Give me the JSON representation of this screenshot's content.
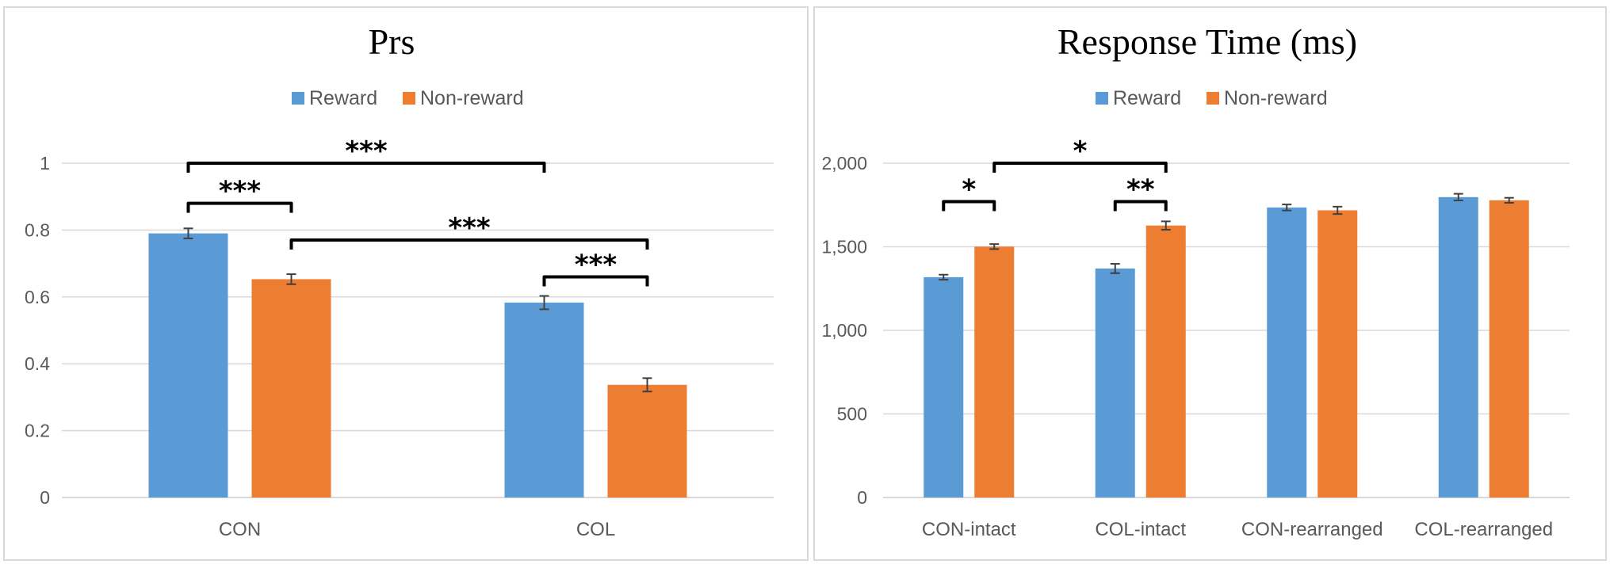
{
  "colors": {
    "reward": "#5b9bd5",
    "nonreward": "#ed7d31",
    "grid": "#d9d9d9",
    "errorbar": "#404040"
  },
  "chart_data": [
    {
      "type": "bar",
      "title": "Prs",
      "categories": [
        "CON",
        "COL"
      ],
      "series": [
        {
          "name": "Reward",
          "values": [
            0.79,
            0.583
          ],
          "errors": [
            0.015,
            0.02
          ]
        },
        {
          "name": "Non-reward",
          "values": [
            0.653,
            0.337
          ],
          "errors": [
            0.015,
            0.02
          ]
        }
      ],
      "ylim": [
        0,
        1
      ],
      "yticks": [
        0,
        0.2,
        0.4,
        0.6,
        0.8,
        1
      ],
      "ytick_labels": [
        "0",
        "0.2",
        "0.4",
        "0.6",
        "0.8",
        "1"
      ],
      "grid": true,
      "legend": "top",
      "significance": [
        {
          "from": [
            0,
            0
          ],
          "to": [
            1,
            0
          ],
          "level": 1.0,
          "label": "***"
        },
        {
          "from": [
            0,
            0
          ],
          "to": [
            0,
            1
          ],
          "level": 0.88,
          "label": "***"
        },
        {
          "from": [
            0,
            1
          ],
          "to": [
            1,
            1
          ],
          "level": 0.77,
          "label": "***"
        },
        {
          "from": [
            1,
            0
          ],
          "to": [
            1,
            1
          ],
          "level": 0.66,
          "label": "***"
        }
      ]
    },
    {
      "type": "bar",
      "title": "Response Time (ms)",
      "categories": [
        "CON-intact",
        "COL-intact",
        "CON-rearranged",
        "COL-rearranged"
      ],
      "series": [
        {
          "name": "Reward",
          "values": [
            1318,
            1370,
            1735,
            1797
          ],
          "errors": [
            15,
            28,
            18,
            20
          ]
        },
        {
          "name": "Non-reward",
          "values": [
            1501,
            1627,
            1718,
            1778
          ],
          "errors": [
            15,
            25,
            22,
            15
          ]
        }
      ],
      "ylim": [
        0,
        2000
      ],
      "yticks": [
        0,
        500,
        1000,
        1500,
        2000
      ],
      "ytick_labels": [
        "0",
        "500",
        "1,000",
        "1,500",
        "2,000"
      ],
      "grid": true,
      "legend": "top",
      "significance": [
        {
          "from": [
            0,
            1
          ],
          "to": [
            1,
            1
          ],
          "level": 2000,
          "label": "*"
        },
        {
          "from": [
            0,
            0
          ],
          "to": [
            0,
            1
          ],
          "level": 1770,
          "label": "*"
        },
        {
          "from": [
            1,
            0
          ],
          "to": [
            1,
            1
          ],
          "level": 1770,
          "label": "**"
        }
      ]
    }
  ]
}
